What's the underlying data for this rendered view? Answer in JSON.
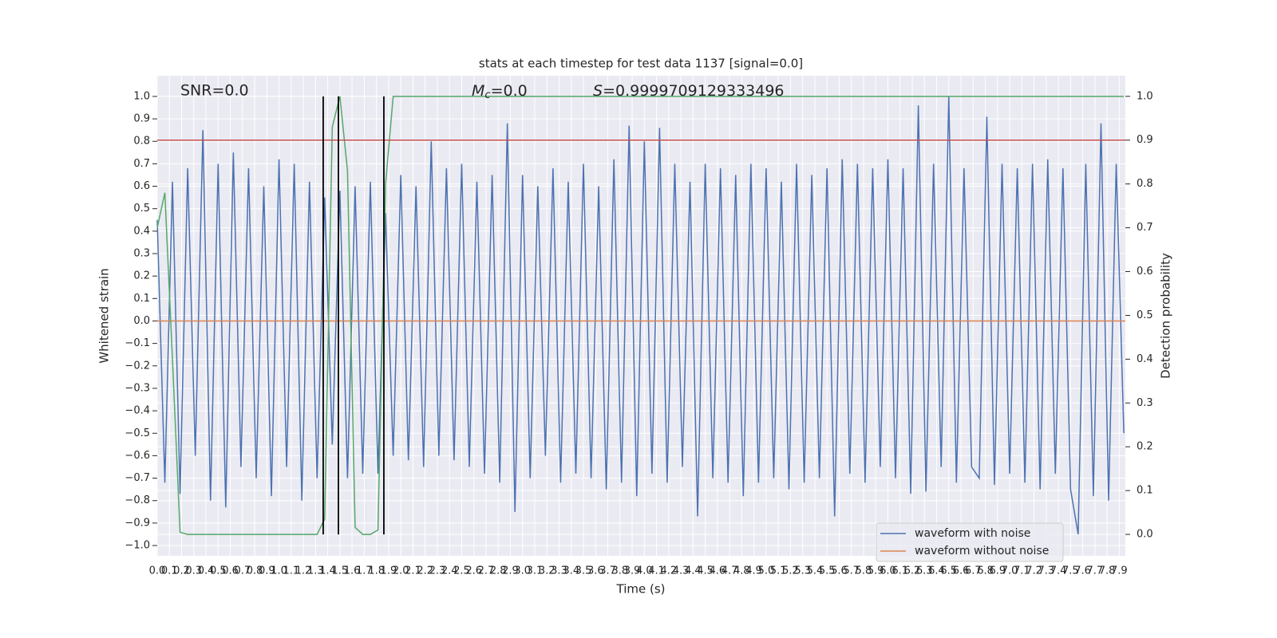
{
  "chart_data": {
    "type": "line",
    "title": "stats at each timestep for test data 1137 [signal=0.0]",
    "xlabel": "Time (s)",
    "ylabel": "Whitened strain",
    "y2label": "Detection probability",
    "annotations": [
      {
        "text": "SNR=0.0"
      },
      {
        "symbol": "M",
        "subscript": "c",
        "text": "=0.0"
      },
      {
        "symbol": "S",
        "text": "=0.9999709129333496"
      }
    ],
    "grid": true,
    "legend": "lower right",
    "xlim": [
      0,
      7.95
    ],
    "ylim": [
      -1.046,
      1.092
    ],
    "y2lim": [
      -0.049,
      1.047
    ],
    "xticks": [
      {
        "value": 0,
        "label": "0.0"
      },
      0.1,
      0.2,
      0.3,
      0.4,
      0.5,
      0.6,
      0.7,
      0.8,
      0.9,
      {
        "value": 1,
        "label": "1.0"
      },
      1.1,
      1.2,
      1.3,
      1.4,
      1.5,
      1.6,
      1.7,
      1.8,
      1.9,
      {
        "value": 2,
        "label": "2.0"
      },
      2.1,
      2.2,
      2.3,
      2.4,
      2.5,
      2.6,
      2.7,
      2.8,
      2.9,
      {
        "value": 3,
        "label": "3.0"
      },
      3.1,
      3.2,
      3.3,
      3.4,
      3.5,
      3.6,
      3.7,
      3.8,
      3.9,
      {
        "value": 4,
        "label": "4.0"
      },
      4.1,
      4.2,
      4.3,
      4.4,
      4.5,
      4.6,
      4.7,
      4.8,
      4.9,
      {
        "value": 5,
        "label": "5.0"
      },
      5.1,
      5.2,
      5.3,
      5.4,
      5.5,
      5.6,
      5.7,
      5.8,
      5.9,
      {
        "value": 6,
        "label": "6.0"
      },
      6.1,
      6.2,
      6.3,
      6.4,
      6.5,
      6.6,
      6.7,
      6.8,
      6.9,
      {
        "value": 7,
        "label": "7.0"
      },
      7.1,
      7.2,
      7.3,
      7.4,
      7.5,
      7.6,
      7.7,
      7.8,
      7.9
    ],
    "yticks": [
      {
        "value": 1,
        "label": "1.0"
      },
      0.9,
      0.8,
      0.7,
      0.6,
      0.5,
      0.4,
      0.3,
      0.2,
      0.1,
      {
        "value": 0,
        "label": "0.0"
      },
      {
        "value": -0.1,
        "label": "−0.1"
      },
      {
        "value": -0.2,
        "label": "−0.2"
      },
      {
        "value": -0.3,
        "label": "−0.3"
      },
      {
        "value": -0.4,
        "label": "−0.4"
      },
      {
        "value": -0.5,
        "label": "−0.5"
      },
      {
        "value": -0.6,
        "label": "−0.6"
      },
      {
        "value": -0.7,
        "label": "−0.7"
      },
      {
        "value": -0.8,
        "label": "−0.8"
      },
      {
        "value": -0.9,
        "label": "−0.9"
      },
      {
        "value": -1,
        "label": "−1.0"
      }
    ],
    "y2ticks": [
      {
        "value": 1,
        "label": "1.0"
      },
      0.9,
      0.8,
      0.7,
      0.6,
      0.5,
      0.4,
      0.3,
      0.2,
      0.1,
      {
        "value": 0,
        "label": "0.0"
      }
    ],
    "series": [
      {
        "name": "waveform with noise",
        "color": "#4c72b0",
        "x": [
          0,
          0.0625,
          0.125,
          0.1875,
          0.25,
          0.3125,
          0.375,
          0.4375,
          0.5,
          0.5625,
          0.625,
          0.6875,
          0.75,
          0.8125,
          0.875,
          0.9375,
          1,
          1.0625,
          1.125,
          1.1875,
          1.25,
          1.3125,
          1.375,
          1.4375,
          1.5,
          1.5625,
          1.625,
          1.6875,
          1.75,
          1.8125,
          1.875,
          1.9375,
          2,
          2.0625,
          2.125,
          2.1875,
          2.25,
          2.3125,
          2.375,
          2.4375,
          2.5,
          2.5625,
          2.625,
          2.6875,
          2.75,
          2.8125,
          2.875,
          2.9375,
          3,
          3.0625,
          3.125,
          3.1875,
          3.25,
          3.3125,
          3.375,
          3.4375,
          3.5,
          3.5625,
          3.625,
          3.6875,
          3.75,
          3.8125,
          3.875,
          3.9375,
          4,
          4.0625,
          4.125,
          4.1875,
          4.25,
          4.3125,
          4.375,
          4.4375,
          4.5,
          4.5625,
          4.625,
          4.6875,
          4.75,
          4.8125,
          4.875,
          4.9375,
          5,
          5.0625,
          5.125,
          5.1875,
          5.25,
          5.3125,
          5.375,
          5.4375,
          5.5,
          5.5625,
          5.625,
          5.6875,
          5.75,
          5.8125,
          5.875,
          5.9375,
          6,
          6.0625,
          6.125,
          6.1875,
          6.25,
          6.3125,
          6.375,
          6.4375,
          6.5,
          6.5625,
          6.625,
          6.6875,
          6.75,
          6.8125,
          6.875,
          6.9375,
          7,
          7.0625,
          7.125,
          7.1875,
          7.25,
          7.3125,
          7.375,
          7.4375,
          7.5,
          7.5625,
          7.625,
          7.6875,
          7.75,
          7.8125,
          7.875,
          7.9375
        ],
        "values": [
          0.45,
          -0.72,
          0.62,
          -0.77,
          0.68,
          -0.6,
          0.85,
          -0.8,
          0.7,
          -0.83,
          0.75,
          -0.65,
          0.68,
          -0.7,
          0.6,
          -0.78,
          0.72,
          -0.65,
          0.7,
          -0.8,
          0.62,
          -0.7,
          0.55,
          -0.55,
          0.58,
          -0.7,
          0.6,
          -0.68,
          0.62,
          -0.68,
          0.48,
          -0.6,
          0.65,
          -0.62,
          0.6,
          -0.65,
          0.8,
          -0.6,
          0.68,
          -0.62,
          0.7,
          -0.65,
          0.62,
          -0.68,
          0.65,
          -0.72,
          0.88,
          -0.85,
          0.65,
          -0.7,
          0.6,
          -0.6,
          0.68,
          -0.72,
          0.62,
          -0.68,
          0.7,
          -0.7,
          0.6,
          -0.75,
          0.72,
          -0.72,
          0.87,
          -0.78,
          0.8,
          -0.68,
          0.86,
          -0.72,
          0.7,
          -0.65,
          0.62,
          -0.87,
          0.7,
          -0.7,
          0.68,
          -0.72,
          0.65,
          -0.78,
          0.7,
          -0.72,
          0.68,
          -0.7,
          0.62,
          -0.75,
          0.7,
          -0.72,
          0.65,
          -0.7,
          0.68,
          -0.87,
          0.72,
          -0.68,
          0.7,
          -0.72,
          0.68,
          -0.65,
          0.72,
          -0.7,
          0.68,
          -0.77,
          0.96,
          -0.76,
          0.7,
          -0.65,
          1.0,
          -0.72,
          0.68,
          -0.65,
          -0.7,
          0.91,
          -0.73,
          0.7,
          -0.68,
          0.68,
          -0.72,
          0.7,
          -0.75,
          0.72,
          -0.68,
          0.68,
          -0.75,
          -0.95,
          0.7,
          -0.78,
          0.88,
          -0.8,
          0.7,
          -0.5
        ]
      },
      {
        "name": "waveform without noise",
        "color": "#dd8452",
        "x": [
          0,
          7.95
        ],
        "values": [
          0,
          0
        ]
      },
      {
        "color": "#55a868",
        "axis": "y2",
        "x": [
          0,
          0.0625,
          0.125,
          0.1875,
          0.25,
          1.3125,
          1.375,
          1.4375,
          1.5,
          1.5625,
          1.625,
          1.6875,
          1.75,
          1.8125,
          1.875,
          1.9375,
          7.9375
        ],
        "values": [
          0.7,
          0.78,
          0.4,
          0.005,
          0.0,
          0.0,
          0.035,
          0.93,
          1.0,
          0.83,
          0.016,
          0.0,
          0.0,
          0.01,
          0.8,
          1.0,
          1.0
        ]
      }
    ],
    "hlines": [
      {
        "value": 0.9,
        "axis": "y2",
        "color": "#c44e52"
      }
    ],
    "vlines": [
      {
        "value": 1.363,
        "axis": "y2",
        "span": [
          0,
          1
        ],
        "color": "#000000"
      },
      {
        "value": 1.488,
        "axis": "y2",
        "span": [
          0,
          1
        ],
        "color": "#000000"
      },
      {
        "value": 1.861,
        "axis": "y2",
        "span": [
          0,
          1
        ],
        "color": "#000000"
      }
    ]
  }
}
